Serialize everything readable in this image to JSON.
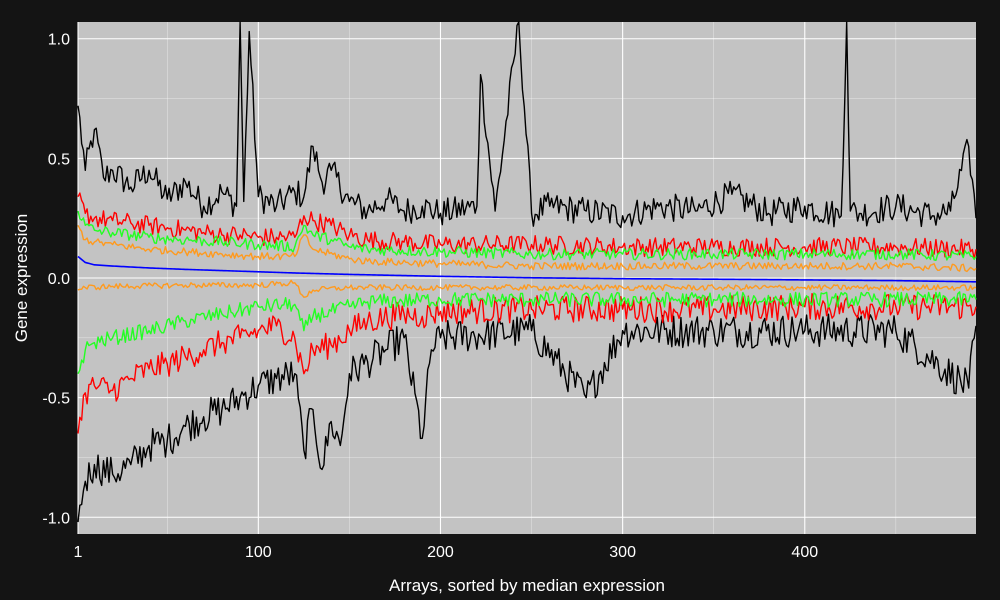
{
  "chart_data": {
    "type": "line",
    "title": "",
    "xlabel": "Arrays, sorted by median expression",
    "ylabel": "Gene expression",
    "xlim": [
      1,
      494
    ],
    "ylim": [
      -1.07,
      1.07
    ],
    "xticks": [
      1,
      100,
      200,
      300,
      400
    ],
    "xtick_labels": [
      "1",
      "100",
      "200",
      "300",
      "400"
    ],
    "yticks": [
      -1.0,
      -0.5,
      0.0,
      0.5,
      1.0
    ],
    "ytick_labels": [
      "-1.0",
      "-0.5",
      "0.0",
      "0.5",
      "1.0"
    ],
    "grid": true,
    "legend": "none",
    "colors": {
      "background": "#141414",
      "panel": "#c3c3c3",
      "grid": "#ffffff",
      "median": "#0000ff",
      "inner": "#ff9a1e",
      "middle": "#22ff22",
      "outer": "#ff0000",
      "extreme": "#000000"
    },
    "n_arrays": 494,
    "series": [
      {
        "role": "extreme",
        "color": "#000000",
        "x": [
          1,
          5,
          10,
          15,
          20,
          30,
          40,
          50,
          60,
          70,
          80,
          88,
          90,
          92,
          95,
          100,
          110,
          120,
          125,
          130,
          135,
          140,
          150,
          160,
          170,
          180,
          190,
          200,
          220,
          222,
          230,
          243,
          250,
          260,
          280,
          300,
          320,
          340,
          360,
          380,
          400,
          420,
          423,
          425,
          430,
          450,
          470,
          480,
          490,
          494
        ],
        "y": [
          0.72,
          0.45,
          0.62,
          0.42,
          0.45,
          0.38,
          0.45,
          0.33,
          0.4,
          0.3,
          0.36,
          0.3,
          1.07,
          0.32,
          1.03,
          0.34,
          0.3,
          0.36,
          0.34,
          0.55,
          0.4,
          0.45,
          0.32,
          0.28,
          0.33,
          0.28,
          0.3,
          0.27,
          0.3,
          0.85,
          0.28,
          1.07,
          0.27,
          0.3,
          0.28,
          0.26,
          0.3,
          0.28,
          0.35,
          0.27,
          0.3,
          0.26,
          1.07,
          0.28,
          0.27,
          0.3,
          0.26,
          0.28,
          0.55,
          0.25
        ]
      },
      {
        "role": "outer",
        "color": "#ff0000",
        "x": [
          1,
          5,
          10,
          20,
          30,
          40,
          50,
          60,
          70,
          80,
          90,
          100,
          110,
          120,
          125,
          130,
          140,
          150,
          160,
          180,
          200,
          250,
          300,
          350,
          400,
          450,
          494
        ],
        "y": [
          0.34,
          0.27,
          0.25,
          0.24,
          0.23,
          0.22,
          0.21,
          0.2,
          0.19,
          0.18,
          0.18,
          0.17,
          0.17,
          0.17,
          0.26,
          0.24,
          0.22,
          0.18,
          0.16,
          0.15,
          0.14,
          0.14,
          0.13,
          0.13,
          0.13,
          0.13,
          0.12
        ]
      },
      {
        "role": "middle",
        "color": "#22ff22",
        "x": [
          1,
          5,
          10,
          20,
          40,
          60,
          80,
          100,
          120,
          125,
          130,
          140,
          150,
          160,
          200,
          250,
          300,
          350,
          400,
          450,
          494
        ],
        "y": [
          0.28,
          0.22,
          0.2,
          0.19,
          0.17,
          0.16,
          0.15,
          0.14,
          0.13,
          0.22,
          0.18,
          0.16,
          0.13,
          0.12,
          0.11,
          0.1,
          0.1,
          0.1,
          0.1,
          0.1,
          0.09
        ]
      },
      {
        "role": "inner",
        "color": "#ff9a1e",
        "x": [
          1,
          5,
          10,
          20,
          40,
          60,
          80,
          100,
          120,
          125,
          130,
          150,
          160,
          200,
          250,
          300,
          350,
          400,
          450,
          494
        ],
        "y": [
          0.22,
          0.16,
          0.15,
          0.14,
          0.12,
          0.11,
          0.1,
          0.09,
          0.09,
          0.18,
          0.12,
          0.08,
          0.07,
          0.06,
          0.05,
          0.05,
          0.05,
          0.05,
          0.05,
          0.04
        ]
      },
      {
        "role": "median",
        "color": "#0000ff",
        "x": [
          1,
          5,
          10,
          20,
          40,
          60,
          80,
          100,
          120,
          150,
          200,
          250,
          300,
          350,
          400,
          450,
          494
        ],
        "y": [
          0.09,
          0.065,
          0.055,
          0.05,
          0.042,
          0.036,
          0.031,
          0.026,
          0.021,
          0.015,
          0.007,
          0.001,
          -0.003,
          -0.005,
          -0.008,
          -0.011,
          -0.016
        ]
      },
      {
        "role": "inner-lower",
        "color": "#ff9a1e",
        "x": [
          1,
          5,
          20,
          60,
          100,
          120,
          125,
          130,
          150,
          160,
          200,
          250,
          300,
          350,
          400,
          450,
          494
        ],
        "y": [
          -0.05,
          -0.04,
          -0.035,
          -0.03,
          -0.03,
          -0.02,
          -0.08,
          -0.05,
          -0.04,
          -0.04,
          -0.04,
          -0.04,
          -0.04,
          -0.04,
          -0.04,
          -0.04,
          -0.04
        ]
      },
      {
        "role": "middle-lower",
        "color": "#22ff22",
        "x": [
          1,
          5,
          10,
          20,
          40,
          60,
          80,
          100,
          120,
          125,
          130,
          150,
          160,
          200,
          250,
          300,
          350,
          400,
          450,
          494
        ],
        "y": [
          -0.4,
          -0.3,
          -0.27,
          -0.25,
          -0.22,
          -0.18,
          -0.15,
          -0.12,
          -0.11,
          -0.22,
          -0.16,
          -0.12,
          -0.1,
          -0.09,
          -0.09,
          -0.09,
          -0.09,
          -0.09,
          -0.09,
          -0.09
        ]
      },
      {
        "role": "outer-lower",
        "color": "#ff0000",
        "x": [
          1,
          5,
          10,
          20,
          30,
          40,
          50,
          60,
          70,
          80,
          90,
          100,
          110,
          120,
          125,
          130,
          140,
          150,
          160,
          180,
          190,
          200,
          250,
          300,
          350,
          400,
          450,
          494
        ],
        "y": [
          -0.65,
          -0.48,
          -0.45,
          -0.47,
          -0.42,
          -0.38,
          -0.36,
          -0.33,
          -0.3,
          -0.27,
          -0.25,
          -0.22,
          -0.2,
          -0.25,
          -0.4,
          -0.3,
          -0.28,
          -0.22,
          -0.18,
          -0.15,
          -0.16,
          -0.14,
          -0.13,
          -0.13,
          -0.13,
          -0.12,
          -0.12,
          -0.12
        ]
      },
      {
        "role": "extreme-lower",
        "color": "#000000",
        "x": [
          1,
          2,
          5,
          10,
          20,
          30,
          40,
          50,
          60,
          70,
          80,
          90,
          100,
          110,
          120,
          125,
          130,
          135,
          140,
          145,
          150,
          160,
          170,
          180,
          190,
          195,
          200,
          250,
          280,
          300,
          350,
          400,
          450,
          490,
          494
        ],
        "y": [
          -1.02,
          -0.95,
          -0.85,
          -0.78,
          -0.82,
          -0.78,
          -0.7,
          -0.68,
          -0.62,
          -0.58,
          -0.55,
          -0.5,
          -0.45,
          -0.42,
          -0.4,
          -0.72,
          -0.55,
          -0.8,
          -0.6,
          -0.7,
          -0.4,
          -0.35,
          -0.3,
          -0.25,
          -0.67,
          -0.3,
          -0.25,
          -0.22,
          -0.5,
          -0.22,
          -0.22,
          -0.22,
          -0.22,
          -0.46,
          -0.2
        ]
      }
    ]
  }
}
